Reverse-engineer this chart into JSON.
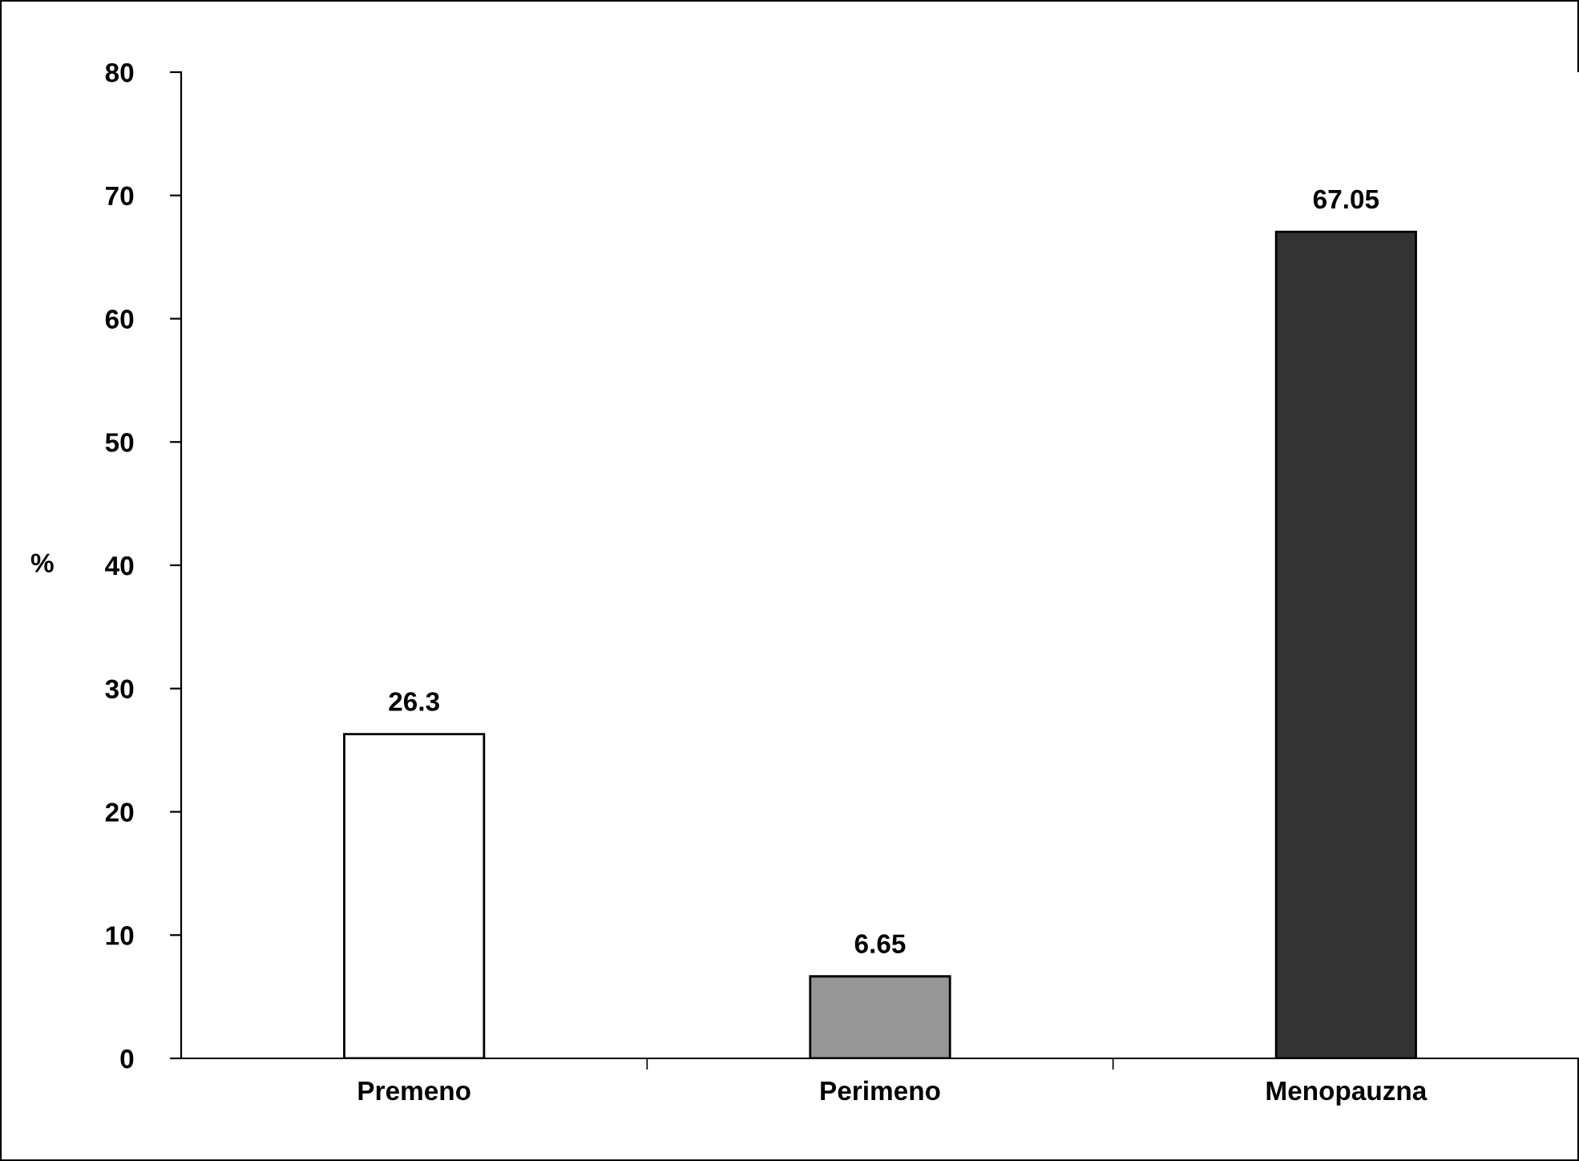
{
  "chart_data": {
    "type": "bar",
    "categories": [
      "Premeno",
      "Perimeno",
      "Menopauzna"
    ],
    "values": [
      26.3,
      6.65,
      67.05
    ],
    "colors": [
      "#ffffff",
      "#969696",
      "#333333"
    ],
    "ylabel": "%",
    "ylim": [
      0,
      80
    ],
    "yticks": [
      0,
      10,
      20,
      30,
      40,
      50,
      60,
      70,
      80
    ],
    "data_labels": true,
    "grid": false,
    "legend": false
  }
}
